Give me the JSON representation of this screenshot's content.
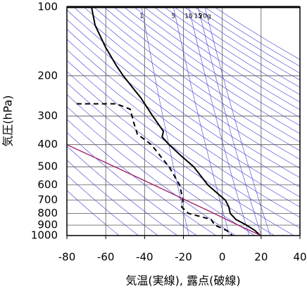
{
  "chart_data": {
    "type": "skewt",
    "xlabel": "気温(実線), 露点(破線)",
    "ylabel": "気圧(hPa)",
    "xlim": [
      -80,
      40
    ],
    "xticks": [
      -80,
      -60,
      -40,
      -20,
      0,
      20,
      40
    ],
    "ylim": [
      1000,
      100
    ],
    "yticks": [
      100,
      200,
      300,
      400,
      500,
      600,
      700,
      800,
      900,
      1000
    ],
    "log_y": true,
    "grid": true,
    "mixing_ratio_lines": [
      1,
      5,
      10,
      15,
      {
        "value": 20,
        "label": "20g"
      }
    ],
    "series": [
      {
        "color": "#000000",
        "dash": false,
        "y": [
          100,
          120,
          150,
          180,
          200,
          250,
          300,
          350,
          370,
          400,
          450,
          500,
          600,
          700,
          750,
          800,
          850,
          900,
          950,
          1000
        ],
        "x": [
          -67.3,
          -65.5,
          -60.1,
          -54.6,
          -51,
          -41.9,
          -35.8,
          -30.3,
          -31,
          -27.4,
          -20.9,
          -14.7,
          -7.5,
          1.6,
          3.4,
          4.1,
          7,
          12.5,
          16.8,
          19.7
        ]
      },
      {
        "color": "#000000",
        "dash": true,
        "y": [
          265,
          265,
          280,
          320,
          360,
          400,
          450,
          500,
          600,
          700,
          750,
          800,
          850,
          900,
          950,
          1000
        ],
        "x": [
          -75,
          -54.6,
          -47.4,
          -45.6,
          -43.7,
          -36.5,
          -31.8,
          -27.4,
          -22,
          -20.2,
          -20.9,
          -17.3,
          -5.7,
          -3.9,
          2.3,
          5.2
        ]
      },
      {
        "color": "#a0206a",
        "dash": false,
        "y": [
          400,
          500,
          600,
          700,
          800,
          900,
          1000
        ],
        "x": [
          -80,
          -55.3,
          -35.4,
          -18.7,
          -4.2,
          8.1,
          20
        ]
      }
    ]
  }
}
